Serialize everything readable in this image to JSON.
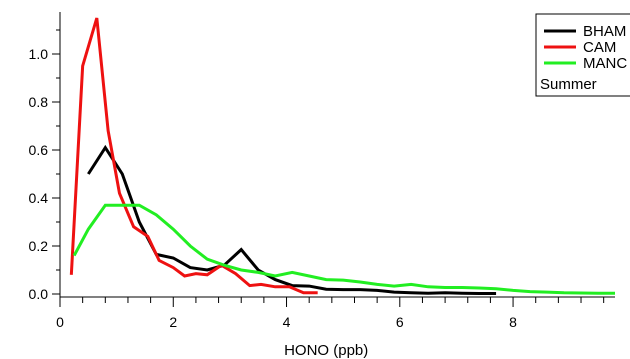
{
  "chart_data": {
    "type": "line",
    "title": "",
    "xlabel": "HONO (ppb)",
    "ylabel": "",
    "xlim": [
      0,
      9.8
    ],
    "ylim": [
      0,
      1.15
    ],
    "x_ticks": [
      "0",
      "2",
      "4",
      "6",
      "8"
    ],
    "y_ticks": [
      "0.0",
      "0.2",
      "0.4",
      "0.6",
      "0.8",
      "1.0"
    ],
    "grid": false,
    "legend_position": "top-right",
    "legend_note": "Summer",
    "series": [
      {
        "name": "BHAM",
        "color": "#000000",
        "x": [
          0.5,
          0.8,
          1.1,
          1.4,
          1.7,
          2.0,
          2.3,
          2.6,
          2.9,
          3.2,
          3.5,
          3.8,
          4.1,
          4.4,
          4.7,
          5.0,
          5.3,
          5.6,
          5.9,
          6.2,
          6.5,
          6.8,
          7.1,
          7.4,
          7.7
        ],
        "y": [
          0.5,
          0.61,
          0.5,
          0.3,
          0.165,
          0.15,
          0.11,
          0.1,
          0.12,
          0.185,
          0.1,
          0.06,
          0.035,
          0.033,
          0.02,
          0.018,
          0.018,
          0.015,
          0.008,
          0.005,
          0.003,
          0.005,
          0.003,
          0.002,
          0.002
        ]
      },
      {
        "name": "CAM",
        "color": "#ee1111",
        "x": [
          0.2,
          0.4,
          0.65,
          0.85,
          1.05,
          1.3,
          1.55,
          1.75,
          2.0,
          2.2,
          2.4,
          2.6,
          2.85,
          3.1,
          3.35,
          3.55,
          3.8,
          4.05,
          4.3,
          4.55
        ],
        "y": [
          0.08,
          0.95,
          1.15,
          0.68,
          0.42,
          0.28,
          0.24,
          0.14,
          0.11,
          0.075,
          0.085,
          0.08,
          0.12,
          0.085,
          0.035,
          0.04,
          0.03,
          0.03,
          0.005,
          0.005
        ]
      },
      {
        "name": "MANC",
        "color": "#22ee22",
        "x": [
          0.25,
          0.5,
          0.8,
          1.1,
          1.4,
          1.7,
          2.0,
          2.3,
          2.6,
          2.9,
          3.2,
          3.5,
          3.8,
          4.1,
          4.4,
          4.7,
          5.0,
          5.3,
          5.6,
          5.9,
          6.2,
          6.5,
          6.8,
          7.1,
          7.4,
          7.7,
          8.0,
          8.3,
          8.6,
          8.9,
          9.2,
          9.5,
          9.8
        ],
        "y": [
          0.16,
          0.27,
          0.37,
          0.37,
          0.37,
          0.33,
          0.27,
          0.2,
          0.145,
          0.12,
          0.1,
          0.09,
          0.075,
          0.09,
          0.075,
          0.06,
          0.058,
          0.05,
          0.04,
          0.033,
          0.04,
          0.03,
          0.027,
          0.027,
          0.025,
          0.022,
          0.015,
          0.01,
          0.008,
          0.005,
          0.004,
          0.003,
          0.003
        ]
      }
    ]
  }
}
